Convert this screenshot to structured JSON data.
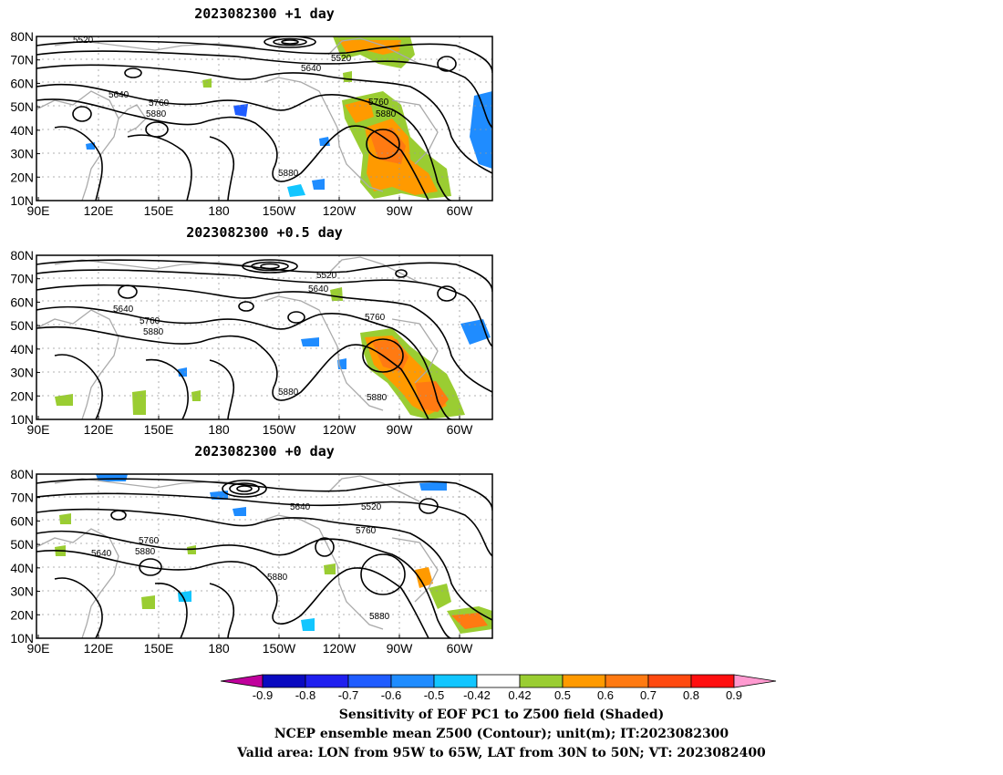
{
  "panels": [
    {
      "title": "2023082300 +1 day",
      "contour_labels": [
        "5520",
        "5520",
        "5640",
        "5640",
        "5760",
        "5760",
        "5880",
        "5880",
        "5880"
      ]
    },
    {
      "title": "2023082300 +0.5 day",
      "contour_labels": [
        "5520",
        "5640",
        "5640",
        "5760",
        "5760",
        "5880",
        "5880",
        "5880"
      ]
    },
    {
      "title": "2023082300 +0 day",
      "contour_labels": [
        "5640",
        "5520",
        "5760",
        "5640",
        "5760",
        "5880",
        "5880",
        "5880"
      ]
    }
  ],
  "axes": {
    "lat_labels": [
      "80N",
      "70N",
      "60N",
      "50N",
      "40N",
      "30N",
      "20N",
      "10N"
    ],
    "lon_labels": [
      "90E",
      "120E",
      "150E",
      "180",
      "150W",
      "120W",
      "90W",
      "60W"
    ]
  },
  "colorbar": {
    "tick_labels": [
      "-0.9",
      "-0.8",
      "-0.7",
      "-0.6",
      "-0.5",
      "-0.42",
      "0.42",
      "0.5",
      "0.6",
      "0.7",
      "0.8",
      "0.9"
    ],
    "colors": [
      "#c0009c",
      "#0a0ac0",
      "#1f1fef",
      "#1f5cff",
      "#1f8cff",
      "#12c6ff",
      "#ffffff",
      "#9acd32",
      "#ff9a00",
      "#ff7a12",
      "#ff4a10",
      "#ff0f0f",
      "#ff9ad0"
    ]
  },
  "caption": {
    "line1": "Sensitivity of EOF PC1 to Z500 field (Shaded)",
    "line2": "NCEP ensemble mean Z500 (Contour); unit(m); IT:2023082300",
    "line3": "Valid area: LON from 95W to 65W, LAT from 30N to 50N; VT: 2023082400"
  }
}
